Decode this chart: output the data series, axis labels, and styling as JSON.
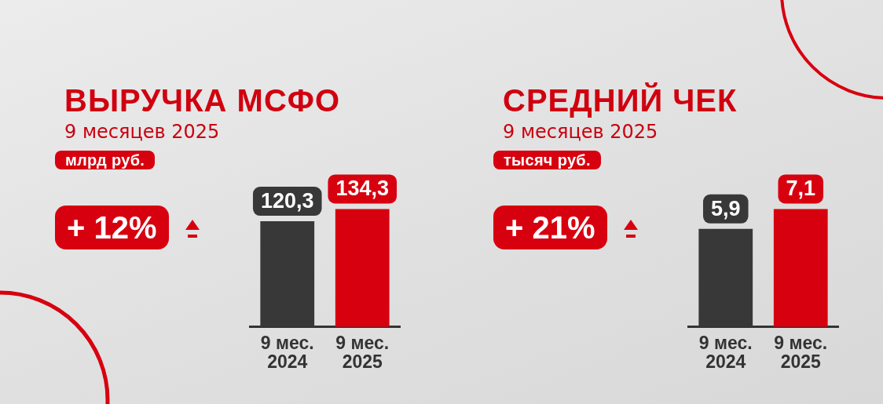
{
  "chart_data": [
    {
      "type": "bar",
      "title": "ВЫРУЧКА МСФО",
      "subtitle": "9 месяцев 2025",
      "ylabel": "млрд руб.",
      "annotations": [
        "+ 12%"
      ],
      "categories": [
        "9 мес. 2024",
        "9 мес. 2025"
      ],
      "values": [
        120.3,
        134.3
      ],
      "colors": [
        "#383838",
        "#d7000f"
      ],
      "value_labels": [
        "120,3",
        "134,3"
      ],
      "tick_labels": "x"
    },
    {
      "type": "bar",
      "title": "СРЕДНИЙ ЧЕК",
      "subtitle": "9 месяцев 2025",
      "ylabel": "тысяч руб.",
      "annotations": [
        "+ 21%"
      ],
      "categories": [
        "9 мес. 2024",
        "9 мес. 2025"
      ],
      "values": [
        5.9,
        7.1
      ],
      "colors": [
        "#383838",
        "#d7000f"
      ],
      "value_labels": [
        "5,9",
        "7,1"
      ],
      "tick_labels": "x"
    }
  ]
}
